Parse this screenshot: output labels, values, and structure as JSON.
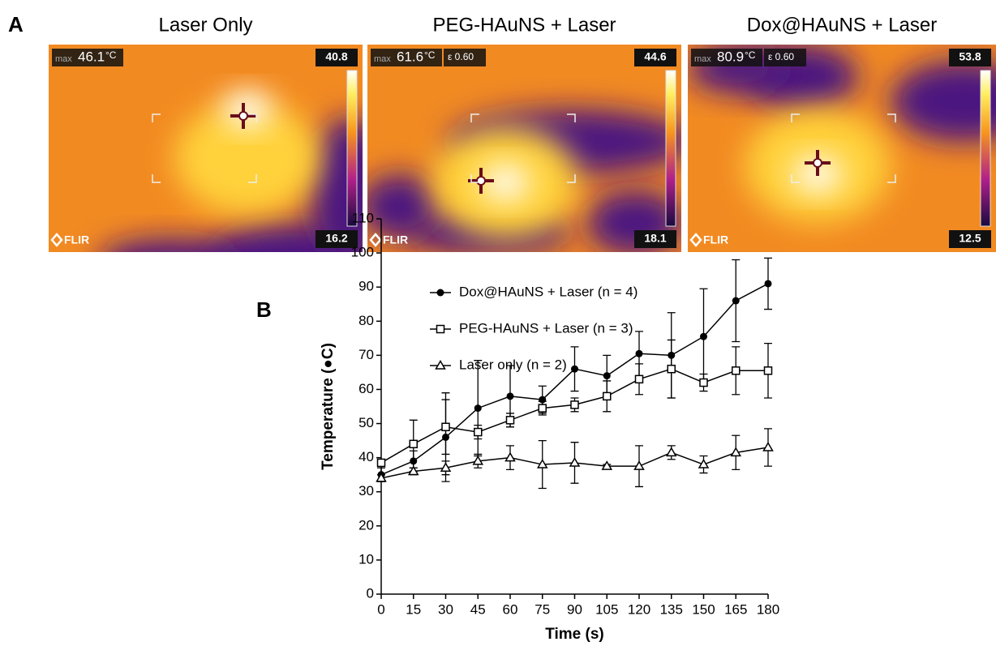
{
  "thermal_panel": {
    "letter": "A",
    "images": [
      {
        "title": "Laser Only",
        "max_label": "max",
        "max_value": "46.1",
        "unit": "°C",
        "scale_max": "40.8",
        "scale_min": "16.2",
        "brand": "FLIR"
      },
      {
        "title": "PEG-HAuNS + Laser",
        "max_label": "max",
        "max_value": "61.6",
        "unit": "°C",
        "emissivity": "ε 0.60",
        "scale_max": "44.6",
        "scale_min": "18.1",
        "brand": "FLIR"
      },
      {
        "title": "Dox@HAuNS + Laser",
        "max_label": "max",
        "max_value": "80.9",
        "unit": "°C",
        "emissivity": "ε 0.60",
        "scale_max": "53.8",
        "scale_min": "12.5",
        "brand": "FLIR"
      }
    ]
  },
  "chart_data": {
    "type": "line",
    "panel_letter": "B",
    "x_label": "Time (s)",
    "y_label": "Temperature (●C)",
    "x": [
      0,
      15,
      30,
      45,
      60,
      75,
      90,
      105,
      120,
      135,
      150,
      165,
      180
    ],
    "xlim": [
      0,
      180
    ],
    "xticks": [
      0,
      15,
      30,
      45,
      60,
      75,
      90,
      105,
      120,
      135,
      150,
      165,
      180
    ],
    "ylim": [
      0,
      110
    ],
    "yticks": [
      0,
      10,
      20,
      30,
      40,
      50,
      60,
      70,
      80,
      90,
      100,
      110
    ],
    "series": [
      {
        "name": "Dox@HAuNS + Laser (n = 4)",
        "color": "#000000",
        "marker": "circle",
        "values": [
          35,
          39,
          46,
          54.5,
          58,
          57,
          66,
          64,
          70.5,
          70,
          75.5,
          86,
          91
        ],
        "errors": [
          2,
          3,
          13,
          14,
          9,
          4,
          6.5,
          6,
          6.5,
          12.5,
          14,
          12,
          7.5
        ]
      },
      {
        "name": "PEG-HAuNS + Laser (n = 3)",
        "color": "#000000",
        "marker": "square",
        "values": [
          38.5,
          44,
          49,
          47.5,
          51,
          54.5,
          55.5,
          58,
          63,
          66,
          62,
          65.5,
          65.5
        ],
        "errors": [
          1,
          7,
          8,
          2,
          2,
          2,
          2,
          4.5,
          4.5,
          8.5,
          2.5,
          7,
          8
        ]
      },
      {
        "name": "Laser only (n = 2)",
        "color": "#000000",
        "marker": "triangle",
        "values": [
          34,
          36,
          37,
          39,
          40,
          38,
          38.5,
          37.5,
          37.5,
          41.5,
          38,
          41.5,
          43
        ],
        "errors": [
          1,
          1,
          2,
          2,
          3.5,
          7,
          6,
          0.5,
          6,
          2,
          2.5,
          5,
          5.5
        ]
      }
    ]
  }
}
